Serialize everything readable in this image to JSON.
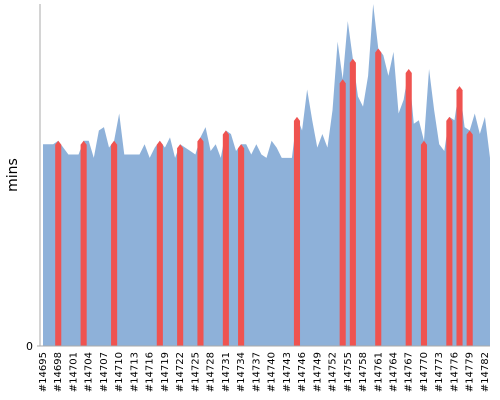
{
  "chart_data": {
    "type": "area",
    "y_label": "mins",
    "categories": [
      "#14695",
      null,
      null,
      "#14698",
      null,
      null,
      "#14701",
      null,
      null,
      "#14704",
      null,
      null,
      "#14707",
      null,
      null,
      "#14710",
      null,
      null,
      "#14713",
      null,
      null,
      "#14716",
      null,
      null,
      "#14719",
      null,
      null,
      "#14722",
      null,
      null,
      "#14725",
      null,
      null,
      "#14728",
      null,
      null,
      "#14731",
      null,
      null,
      "#14734",
      null,
      null,
      "#14737",
      null,
      null,
      "#14740",
      null,
      null,
      "#14743",
      null,
      null,
      "#14746",
      null,
      null,
      "#14749",
      null,
      null,
      "#14752",
      null,
      null,
      "#14755",
      null,
      null,
      "#14758",
      null,
      null,
      "#14761",
      null,
      null,
      "#14764",
      null,
      null,
      "#14767",
      null,
      null,
      "#14770",
      null,
      null,
      "#14773",
      null,
      null,
      "#14776",
      null,
      null,
      "#14779",
      null,
      null,
      "#14782",
      null
    ],
    "values": [
      59,
      59,
      59,
      60,
      58,
      56,
      56,
      56,
      60,
      60,
      55,
      63,
      64,
      58,
      60,
      68,
      56,
      56,
      56,
      56,
      59,
      55,
      58,
      60,
      58,
      61,
      55,
      59,
      58,
      57,
      56,
      61,
      64,
      57,
      59,
      55,
      63,
      62,
      57,
      59,
      59,
      56,
      59,
      56,
      55,
      60,
      58,
      55,
      55,
      55,
      67,
      63,
      75,
      66,
      58,
      62,
      58,
      69,
      89,
      78,
      95,
      84,
      73,
      70,
      79,
      100,
      87,
      85,
      79,
      86,
      68,
      72,
      81,
      65,
      66,
      60,
      81,
      69,
      59,
      57,
      67,
      66,
      76,
      64,
      63,
      68,
      62,
      67,
      55
    ],
    "color": "#8eb1d9",
    "colors": [
      "#8eb1d9",
      "#8eb1d9",
      "#8eb1d9",
      "#ef5350",
      "#8eb1d9",
      "#8eb1d9",
      "#8eb1d9",
      "#8eb1d9",
      "#ef5350",
      "#8eb1d9",
      "#8eb1d9",
      "#8eb1d9",
      "#8eb1d9",
      "#8eb1d9",
      "#ef5350",
      "#8eb1d9",
      "#8eb1d9",
      "#8eb1d9",
      "#8eb1d9",
      "#8eb1d9",
      "#8eb1d9",
      "#8eb1d9",
      "#8eb1d9",
      "#ef5350",
      "#8eb1d9",
      "#8eb1d9",
      "#8eb1d9",
      "#ef5350",
      "#8eb1d9",
      "#8eb1d9",
      "#8eb1d9",
      "#ef5350",
      "#8eb1d9",
      "#8eb1d9",
      "#8eb1d9",
      "#8eb1d9",
      "#ef5350",
      "#8eb1d9",
      "#8eb1d9",
      "#ef5350",
      "#8eb1d9",
      "#8eb1d9",
      "#8eb1d9",
      "#8eb1d9",
      "#8eb1d9",
      "#8eb1d9",
      "#8eb1d9",
      "#8eb1d9",
      "#8eb1d9",
      "#8eb1d9",
      "#ef5350",
      "#8eb1d9",
      "#8eb1d9",
      "#8eb1d9",
      "#8eb1d9",
      "#8eb1d9",
      "#8eb1d9",
      "#8eb1d9",
      "#8eb1d9",
      "#ef5350",
      "#8eb1d9",
      "#ef5350",
      "#8eb1d9",
      "#8eb1d9",
      "#8eb1d9",
      "#8eb1d9",
      "#ef5350",
      "#8eb1d9",
      "#8eb1d9",
      "#8eb1d9",
      "#8eb1d9",
      "#8eb1d9",
      "#ef5350",
      "#8eb1d9",
      "#8eb1d9",
      "#ef5350",
      "#8eb1d9",
      "#8eb1d9",
      "#8eb1d9",
      "#8eb1d9",
      "#ef5350",
      "#8eb1d9",
      "#ef5350",
      "#8eb1d9",
      "#ef5350",
      "#8eb1d9",
      "#8eb1d9",
      "#8eb1d9",
      "#8eb1d9"
    ],
    "ylim": [
      0,
      100
    ],
    "yticks": [
      0
    ]
  }
}
